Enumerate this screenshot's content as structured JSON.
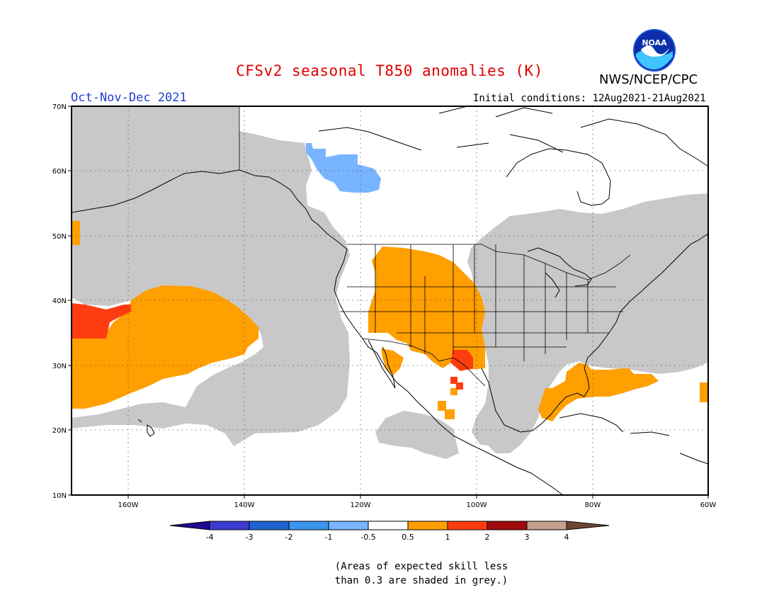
{
  "header": {
    "title": "CFSv2 seasonal T850 anomalies (K)",
    "period": "Oct-Nov-Dec 2021",
    "initial_conditions": "Initial conditions: 12Aug2021-21Aug2021",
    "agency": "NWS/NCEP/CPC",
    "logo_text": "NOAA"
  },
  "map": {
    "lon_labels": [
      "160W",
      "140W",
      "120W",
      "100W",
      "80W",
      "60W"
    ],
    "lat_labels": [
      "70N",
      "60N",
      "50N",
      "40N",
      "30N",
      "20N",
      "10N"
    ],
    "colors": {
      "grey_low_skill": "#c8c8c8",
      "warm_0_5_1": "#ff9f00",
      "warm_1_2": "#ff3c10",
      "cool_-1_-0_5": "#78b4ff"
    }
  },
  "colorbar": {
    "ticks": [
      "-4",
      "-3",
      "-2",
      "-1",
      "-0.5",
      "0.5",
      "1",
      "2",
      "3",
      "4"
    ],
    "colors": [
      "#200a90",
      "#3c3cd2",
      "#1f64d2",
      "#3c96f0",
      "#78b4ff",
      "#ffffff",
      "#ff9f00",
      "#ff3c10",
      "#a00a0a",
      "#c8a090",
      "#6e4632"
    ]
  },
  "footnote": {
    "line1": "(Areas of expected skill less",
    "line2": "than 0.3 are shaded in grey.)"
  }
}
